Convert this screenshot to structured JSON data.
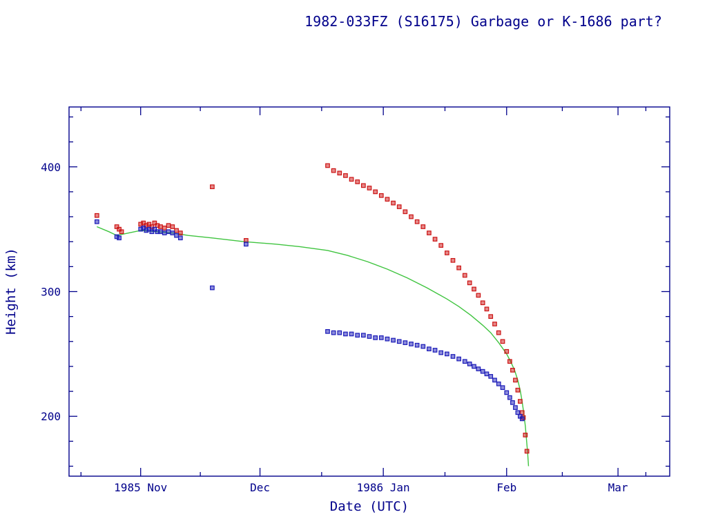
{
  "page": {
    "background": "#ffffff"
  },
  "chart_data": {
    "type": "scatter",
    "title": "1982-033FZ (S16175) Garbage or K-1686 part?",
    "xlabel": "Date (UTC)",
    "ylabel": "Height (km)",
    "x_unit": "days since 1985-10-14",
    "xlim": [
      0,
      151
    ],
    "ylim": [
      152,
      448
    ],
    "grid": false,
    "legend": "none",
    "x_ticks": [
      {
        "day": 18,
        "label": "1985 Nov"
      },
      {
        "day": 48,
        "label": "Dec"
      },
      {
        "day": 79,
        "label": "1986 Jan"
      },
      {
        "day": 110,
        "label": "Feb"
      },
      {
        "day": 138,
        "label": "Mar"
      }
    ],
    "x_minor_days": [
      3,
      33,
      63.5,
      94.5,
      124,
      145
    ],
    "y_ticks": [
      {
        "km": 200,
        "label": "200"
      },
      {
        "km": 300,
        "label": "300"
      },
      {
        "km": 400,
        "label": "400"
      }
    ],
    "y_minor_step": 20,
    "colors": {
      "axis": "#00008b",
      "apogee": "#cc1414",
      "perigee": "#1a1ab8",
      "mean_line": "#3fc43f"
    },
    "series": [
      {
        "name": "mean-height-line",
        "type": "line",
        "color_key": "mean_line",
        "points": [
          [
            7,
            352
          ],
          [
            10,
            348
          ],
          [
            12,
            345
          ],
          [
            15,
            347
          ],
          [
            18,
            349
          ],
          [
            22,
            348
          ],
          [
            26,
            347
          ],
          [
            30,
            345
          ],
          [
            36,
            343
          ],
          [
            44,
            340
          ],
          [
            52,
            338
          ],
          [
            58,
            336
          ],
          [
            65,
            333
          ],
          [
            70,
            329
          ],
          [
            75,
            324
          ],
          [
            80,
            318
          ],
          [
            85,
            311
          ],
          [
            90,
            303
          ],
          [
            95,
            294
          ],
          [
            98,
            288
          ],
          [
            101,
            281
          ],
          [
            104,
            273
          ],
          [
            106,
            267
          ],
          [
            108,
            259
          ],
          [
            110,
            250
          ],
          [
            111,
            244
          ],
          [
            112,
            237
          ],
          [
            112.8,
            229
          ],
          [
            113.4,
            221
          ],
          [
            113.9,
            212
          ],
          [
            114.3,
            203
          ],
          [
            114.7,
            192
          ],
          [
            115,
            181
          ],
          [
            115.3,
            170
          ],
          [
            115.5,
            160
          ]
        ]
      },
      {
        "name": "apogee-height-points",
        "type": "scatter",
        "marker": "square",
        "color_key": "apogee",
        "points": [
          [
            7,
            361
          ],
          [
            12,
            352
          ],
          [
            12.6,
            350
          ],
          [
            13.2,
            348
          ],
          [
            18,
            354
          ],
          [
            18.7,
            355
          ],
          [
            19.4,
            353
          ],
          [
            20.1,
            354
          ],
          [
            20.8,
            352
          ],
          [
            21.5,
            355
          ],
          [
            22.2,
            353
          ],
          [
            23,
            352
          ],
          [
            24,
            351
          ],
          [
            25,
            353
          ],
          [
            26,
            352
          ],
          [
            27,
            349
          ],
          [
            28,
            347
          ],
          [
            36,
            384
          ],
          [
            44.5,
            341
          ],
          [
            65,
            401
          ],
          [
            66.5,
            397
          ],
          [
            68,
            395
          ],
          [
            69.5,
            393
          ],
          [
            71,
            390
          ],
          [
            72.5,
            388
          ],
          [
            74,
            385
          ],
          [
            75.5,
            383
          ],
          [
            77,
            380
          ],
          [
            78.5,
            377
          ],
          [
            80,
            374
          ],
          [
            81.5,
            371
          ],
          [
            83,
            368
          ],
          [
            84.5,
            364
          ],
          [
            86,
            360
          ],
          [
            87.5,
            356
          ],
          [
            89,
            352
          ],
          [
            90.5,
            347
          ],
          [
            92,
            342
          ],
          [
            93.5,
            337
          ],
          [
            95,
            331
          ],
          [
            96.5,
            325
          ],
          [
            98,
            319
          ],
          [
            99.5,
            313
          ],
          [
            100.7,
            307
          ],
          [
            101.8,
            302
          ],
          [
            102.9,
            297
          ],
          [
            104,
            291
          ],
          [
            105,
            286
          ],
          [
            106,
            280
          ],
          [
            107,
            274
          ],
          [
            108,
            267
          ],
          [
            109,
            260
          ],
          [
            110,
            252
          ],
          [
            110.8,
            244
          ],
          [
            111.5,
            237
          ],
          [
            112.2,
            229
          ],
          [
            112.8,
            221
          ],
          [
            113.4,
            212
          ],
          [
            113.9,
            203
          ],
          [
            114.2,
            199
          ],
          [
            114.7,
            185
          ],
          [
            115.1,
            172
          ]
        ]
      },
      {
        "name": "perigee-height-points",
        "type": "scatter",
        "marker": "square",
        "color_key": "perigee",
        "points": [
          [
            7,
            356
          ],
          [
            12,
            344
          ],
          [
            12.6,
            343
          ],
          [
            18,
            350
          ],
          [
            18.7,
            351
          ],
          [
            19.4,
            349
          ],
          [
            20.1,
            350
          ],
          [
            20.8,
            348
          ],
          [
            21.5,
            350
          ],
          [
            22.2,
            348
          ],
          [
            23,
            348
          ],
          [
            24,
            347
          ],
          [
            25,
            348
          ],
          [
            26,
            347
          ],
          [
            27,
            345
          ],
          [
            28,
            343
          ],
          [
            36,
            303
          ],
          [
            44.5,
            338
          ],
          [
            65,
            268
          ],
          [
            66.5,
            267
          ],
          [
            68,
            267
          ],
          [
            69.5,
            266
          ],
          [
            71,
            266
          ],
          [
            72.5,
            265
          ],
          [
            74,
            265
          ],
          [
            75.5,
            264
          ],
          [
            77,
            263
          ],
          [
            78.5,
            263
          ],
          [
            80,
            262
          ],
          [
            81.5,
            261
          ],
          [
            83,
            260
          ],
          [
            84.5,
            259
          ],
          [
            86,
            258
          ],
          [
            87.5,
            257
          ],
          [
            89,
            256
          ],
          [
            90.5,
            254
          ],
          [
            92,
            253
          ],
          [
            93.5,
            251
          ],
          [
            95,
            250
          ],
          [
            96.5,
            248
          ],
          [
            98,
            246
          ],
          [
            99.5,
            244
          ],
          [
            100.7,
            242
          ],
          [
            101.8,
            240
          ],
          [
            102.9,
            238
          ],
          [
            104,
            236
          ],
          [
            105,
            234
          ],
          [
            106,
            232
          ],
          [
            107,
            229
          ],
          [
            108,
            226
          ],
          [
            109,
            223
          ],
          [
            110,
            219
          ],
          [
            110.8,
            215
          ],
          [
            111.5,
            211
          ],
          [
            112.2,
            207
          ],
          [
            112.8,
            203
          ],
          [
            113.4,
            200
          ],
          [
            113.9,
            198
          ]
        ]
      }
    ]
  }
}
